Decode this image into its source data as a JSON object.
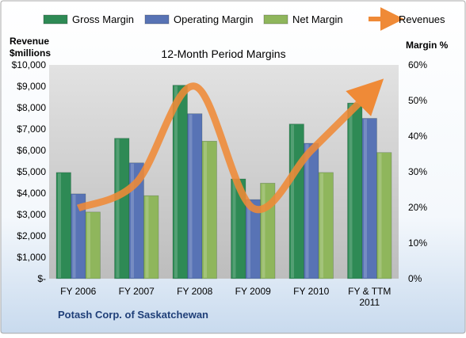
{
  "chart_data": {
    "type": "bar",
    "title": "12-Month Period Margins",
    "footer": "Potash Corp. of Saskatchewan",
    "left_axis": {
      "label_line1": "Revenue",
      "label_line2": "$millions",
      "range": [
        0,
        10000
      ],
      "ticks": [
        "$-",
        "$1,000",
        "$2,000",
        "$3,000",
        "$4,000",
        "$5,000",
        "$6,000",
        "$7,000",
        "$8,000",
        "$9,000",
        "$10,000"
      ]
    },
    "right_axis": {
      "label": "Margin %",
      "range": [
        0,
        60
      ],
      "ticks": [
        "0%",
        "10%",
        "20%",
        "30%",
        "40%",
        "50%",
        "60%"
      ]
    },
    "categories": [
      [
        "FY 2006"
      ],
      [
        "FY 2007"
      ],
      [
        "FY 2008"
      ],
      [
        "FY 2009"
      ],
      [
        "FY 2010"
      ],
      [
        "FY & TTM",
        "2011"
      ]
    ],
    "series": [
      {
        "name": "Gross Margin",
        "axis": "right",
        "color": "#2e8a55",
        "values": [
          29.8,
          39.4,
          54.3,
          28.0,
          43.4,
          49.3
        ]
      },
      {
        "name": "Operating Margin",
        "axis": "right",
        "color": "#5873b5",
        "values": [
          23.8,
          32.5,
          46.3,
          22.2,
          38.0,
          45.0
        ]
      },
      {
        "name": "Net Margin",
        "axis": "right",
        "color": "#8fb65c",
        "values": [
          18.7,
          23.3,
          38.6,
          26.8,
          29.8,
          35.4
        ]
      }
    ],
    "line_series": {
      "name": "Revenues",
      "axis": "left",
      "color": "#ef8a37",
      "values": [
        3300,
        4500,
        9000,
        3300,
        6000,
        8700
      ]
    },
    "legend_position": "top",
    "grid": false
  }
}
